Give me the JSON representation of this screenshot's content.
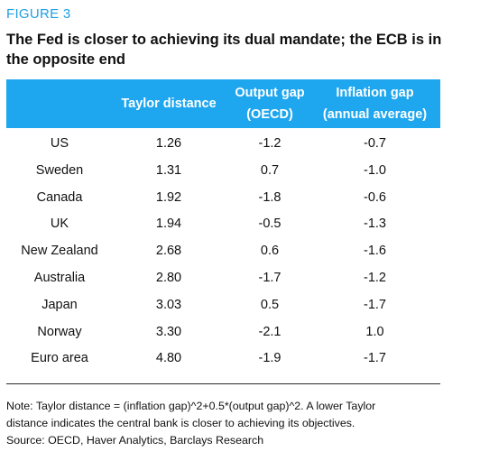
{
  "figure_label": "FIGURE 3",
  "title": "The Fed is closer to achieving its dual mandate; the ECB is in the opposite end",
  "table": {
    "headers": {
      "name": "",
      "taylor": "Taylor distance",
      "output_line1": "Output gap",
      "output_line2": "(OECD)",
      "inflation_line1": "Inflation gap",
      "inflation_line2": "(annual average)"
    },
    "rows": [
      {
        "name": "US",
        "taylor": "1.26",
        "output": "-1.2",
        "inflation": "-0.7"
      },
      {
        "name": "Sweden",
        "taylor": "1.31",
        "output": "0.7",
        "inflation": "-1.0"
      },
      {
        "name": "Canada",
        "taylor": "1.92",
        "output": "-1.8",
        "inflation": "-0.6"
      },
      {
        "name": "UK",
        "taylor": "1.94",
        "output": "-0.5",
        "inflation": "-1.3"
      },
      {
        "name": "New Zealand",
        "taylor": "2.68",
        "output": "0.6",
        "inflation": "-1.6"
      },
      {
        "name": "Australia",
        "taylor": "2.80",
        "output": "-1.7",
        "inflation": "-1.2"
      },
      {
        "name": "Japan",
        "taylor": "3.03",
        "output": "0.5",
        "inflation": "-1.7"
      },
      {
        "name": "Norway",
        "taylor": "3.30",
        "output": "-2.1",
        "inflation": "1.0"
      },
      {
        "name": "Euro area",
        "taylor": "4.80",
        "output": "-1.9",
        "inflation": "-1.7"
      }
    ]
  },
  "note_line1": "Note: Taylor distance = (inflation gap)^2+0.5*(output gap)^2. A lower Taylor",
  "note_line2": "distance indicates the central bank is closer to achieving its objectives.",
  "source": "Source: OECD, Haver Analytics, Barclays Research",
  "colors": {
    "accent": "#1ea6ee",
    "figure_label": "#1e9fe6"
  }
}
